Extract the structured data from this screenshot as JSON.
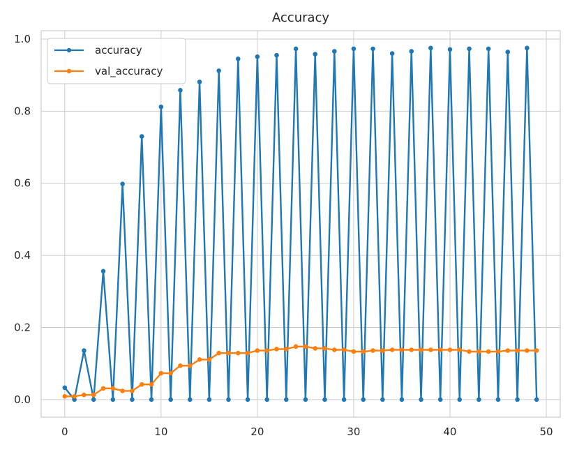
{
  "chart_data": {
    "type": "line",
    "title": "Accuracy",
    "xlabel": "",
    "ylabel": "",
    "xlim": [
      -2.45,
      51.45
    ],
    "ylim": [
      -0.0487,
      1.0231
    ],
    "xticks": [
      0,
      10,
      20,
      30,
      40,
      50
    ],
    "yticks": [
      0.0,
      0.2,
      0.4,
      0.6,
      0.8,
      1.0
    ],
    "xtick_labels": [
      "0",
      "10",
      "20",
      "30",
      "40",
      "50"
    ],
    "ytick_labels": [
      "0.0",
      "0.2",
      "0.4",
      "0.6",
      "0.8",
      "1.0"
    ],
    "grid": true,
    "legend_position": "upper-left",
    "x": [
      0,
      1,
      2,
      3,
      4,
      5,
      6,
      7,
      8,
      9,
      10,
      11,
      12,
      13,
      14,
      15,
      16,
      17,
      18,
      19,
      20,
      21,
      22,
      23,
      24,
      25,
      26,
      27,
      28,
      29,
      30,
      31,
      32,
      33,
      34,
      35,
      36,
      37,
      38,
      39,
      40,
      41,
      42,
      43,
      44,
      45,
      46,
      47,
      48,
      49
    ],
    "series": [
      {
        "name": "accuracy",
        "color": "#1f77b4",
        "values": [
          0.033,
          0.0,
          0.136,
          0.0,
          0.356,
          0.0,
          0.598,
          0.0,
          0.73,
          0.0,
          0.812,
          0.0,
          0.858,
          0.0,
          0.881,
          0.0,
          0.912,
          0.0,
          0.945,
          0.0,
          0.951,
          0.0,
          0.955,
          0.0,
          0.973,
          0.0,
          0.958,
          0.0,
          0.966,
          0.0,
          0.973,
          0.0,
          0.973,
          0.0,
          0.96,
          0.0,
          0.966,
          0.0,
          0.975,
          0.0,
          0.971,
          0.0,
          0.973,
          0.0,
          0.973,
          0.0,
          0.964,
          0.0,
          0.975,
          0.0
        ]
      },
      {
        "name": "val_accuracy",
        "color": "#ff7f0e",
        "values": [
          0.009,
          0.009,
          0.013,
          0.013,
          0.031,
          0.031,
          0.024,
          0.024,
          0.042,
          0.042,
          0.073,
          0.073,
          0.094,
          0.094,
          0.111,
          0.111,
          0.129,
          0.129,
          0.129,
          0.129,
          0.136,
          0.136,
          0.14,
          0.14,
          0.147,
          0.147,
          0.142,
          0.142,
          0.138,
          0.138,
          0.133,
          0.133,
          0.136,
          0.136,
          0.138,
          0.138,
          0.138,
          0.138,
          0.138,
          0.138,
          0.138,
          0.138,
          0.133,
          0.133,
          0.133,
          0.133,
          0.136,
          0.136,
          0.136,
          0.136
        ]
      }
    ]
  }
}
